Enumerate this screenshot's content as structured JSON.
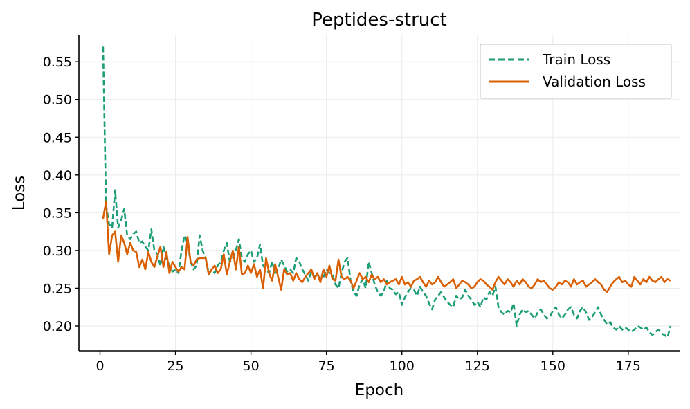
{
  "chart_data": {
    "type": "line",
    "title": "Peptides-struct",
    "xlabel": "Epoch",
    "ylabel": "Loss",
    "xlim": [
      -7,
      192
    ],
    "ylim": [
      0.167,
      0.585
    ],
    "xticks": [
      0,
      25,
      50,
      75,
      100,
      125,
      150,
      175
    ],
    "yticks": [
      0.2,
      0.25,
      0.3,
      0.35,
      0.4,
      0.45,
      0.5,
      0.55
    ],
    "xtick_labels": [
      "0",
      "25",
      "50",
      "75",
      "100",
      "125",
      "150",
      "175"
    ],
    "ytick_labels": [
      "0.20",
      "0.25",
      "0.30",
      "0.35",
      "0.40",
      "0.45",
      "0.50",
      "0.55"
    ],
    "grid": true,
    "legend_position": "top-right",
    "series": [
      {
        "name": "Train Loss",
        "color": "#1b9e77",
        "style": "dashed",
        "values": [
          0.57,
          0.36,
          0.335,
          0.33,
          0.38,
          0.33,
          0.34,
          0.355,
          0.32,
          0.315,
          0.322,
          0.325,
          0.31,
          0.312,
          0.305,
          0.3,
          0.328,
          0.3,
          0.295,
          0.28,
          0.305,
          0.29,
          0.28,
          0.272,
          0.275,
          0.27,
          0.3,
          0.32,
          0.31,
          0.285,
          0.275,
          0.28,
          0.32,
          0.3,
          0.29,
          0.27,
          0.275,
          0.27,
          0.28,
          0.285,
          0.3,
          0.31,
          0.285,
          0.29,
          0.3,
          0.315,
          0.29,
          0.285,
          0.295,
          0.3,
          0.285,
          0.29,
          0.308,
          0.28,
          0.275,
          0.27,
          0.285,
          0.27,
          0.275,
          0.288,
          0.28,
          0.272,
          0.275,
          0.27,
          0.29,
          0.285,
          0.275,
          0.268,
          0.26,
          0.272,
          0.265,
          0.268,
          0.262,
          0.265,
          0.275,
          0.27,
          0.268,
          0.255,
          0.25,
          0.27,
          0.285,
          0.29,
          0.26,
          0.245,
          0.24,
          0.255,
          0.262,
          0.25,
          0.285,
          0.27,
          0.255,
          0.245,
          0.24,
          0.245,
          0.26,
          0.25,
          0.248,
          0.242,
          0.245,
          0.228,
          0.238,
          0.245,
          0.25,
          0.248,
          0.24,
          0.252,
          0.245,
          0.24,
          0.23,
          0.222,
          0.235,
          0.24,
          0.245,
          0.238,
          0.232,
          0.228,
          0.225,
          0.24,
          0.235,
          0.238,
          0.248,
          0.24,
          0.235,
          0.228,
          0.232,
          0.225,
          0.238,
          0.235,
          0.245,
          0.24,
          0.252,
          0.225,
          0.218,
          0.215,
          0.22,
          0.218,
          0.23,
          0.2,
          0.215,
          0.222,
          0.218,
          0.22,
          0.215,
          0.21,
          0.218,
          0.222,
          0.215,
          0.21,
          0.212,
          0.22,
          0.225,
          0.215,
          0.21,
          0.215,
          0.222,
          0.225,
          0.215,
          0.21,
          0.22,
          0.225,
          0.218,
          0.208,
          0.212,
          0.218,
          0.225,
          0.215,
          0.208,
          0.202,
          0.205,
          0.198,
          0.195,
          0.2,
          0.195,
          0.198,
          0.195,
          0.192,
          0.195,
          0.2,
          0.198,
          0.195,
          0.198,
          0.192,
          0.188,
          0.192,
          0.195,
          0.19,
          0.188,
          0.185,
          0.2
        ]
      },
      {
        "name": "Validation Loss",
        "color": "#d95f02",
        "style": "solid",
        "values": [
          0.342,
          0.365,
          0.295,
          0.32,
          0.325,
          0.285,
          0.32,
          0.31,
          0.295,
          0.31,
          0.3,
          0.298,
          0.278,
          0.288,
          0.275,
          0.298,
          0.285,
          0.278,
          0.292,
          0.305,
          0.278,
          0.298,
          0.27,
          0.285,
          0.278,
          0.272,
          0.278,
          0.275,
          0.318,
          0.285,
          0.28,
          0.288,
          0.29,
          0.29,
          0.29,
          0.268,
          0.275,
          0.28,
          0.27,
          0.275,
          0.295,
          0.268,
          0.285,
          0.3,
          0.275,
          0.305,
          0.268,
          0.27,
          0.28,
          0.27,
          0.282,
          0.265,
          0.275,
          0.25,
          0.29,
          0.27,
          0.26,
          0.282,
          0.265,
          0.248,
          0.275,
          0.268,
          0.27,
          0.26,
          0.27,
          0.262,
          0.258,
          0.265,
          0.27,
          0.275,
          0.262,
          0.27,
          0.258,
          0.275,
          0.265,
          0.28,
          0.262,
          0.26,
          0.288,
          0.265,
          0.262,
          0.265,
          0.26,
          0.25,
          0.26,
          0.27,
          0.262,
          0.265,
          0.258,
          0.268,
          0.262,
          0.265,
          0.258,
          0.262,
          0.255,
          0.258,
          0.26,
          0.262,
          0.255,
          0.265,
          0.255,
          0.258,
          0.252,
          0.26,
          0.262,
          0.265,
          0.258,
          0.252,
          0.26,
          0.255,
          0.258,
          0.265,
          0.258,
          0.252,
          0.255,
          0.258,
          0.262,
          0.25,
          0.255,
          0.26,
          0.258,
          0.255,
          0.25,
          0.252,
          0.258,
          0.262,
          0.26,
          0.255,
          0.252,
          0.248,
          0.258,
          0.265,
          0.26,
          0.255,
          0.262,
          0.258,
          0.252,
          0.26,
          0.255,
          0.262,
          0.258,
          0.252,
          0.25,
          0.255,
          0.262,
          0.258,
          0.26,
          0.255,
          0.25,
          0.248,
          0.252,
          0.258,
          0.255,
          0.26,
          0.258,
          0.252,
          0.262,
          0.255,
          0.258,
          0.26,
          0.252,
          0.255,
          0.258,
          0.262,
          0.258,
          0.255,
          0.248,
          0.245,
          0.252,
          0.258,
          0.262,
          0.265,
          0.258,
          0.26,
          0.255,
          0.252,
          0.265,
          0.26,
          0.255,
          0.262,
          0.258,
          0.265,
          0.26,
          0.258,
          0.262,
          0.265,
          0.258,
          0.262,
          0.26
        ]
      }
    ]
  }
}
